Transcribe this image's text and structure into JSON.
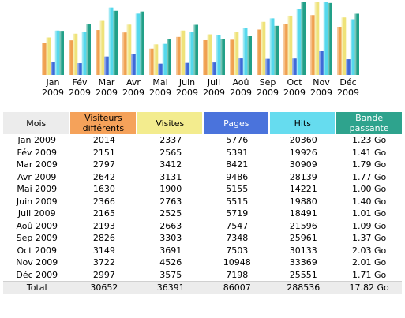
{
  "chart_data": {
    "type": "bar",
    "categories": [
      "Jan 2009",
      "Fév 2009",
      "Mar 2009",
      "Avr 2009",
      "Mai 2009",
      "Juin 2009",
      "Juil 2009",
      "Aoû 2009",
      "Sep 2009",
      "Oct 2009",
      "Nov 2009",
      "Déc 2009"
    ],
    "category_lines": [
      [
        "Jan",
        "2009"
      ],
      [
        "Fév",
        "2009"
      ],
      [
        "Mar",
        "2009"
      ],
      [
        "Avr",
        "2009"
      ],
      [
        "Mai",
        "2009"
      ],
      [
        "Juin",
        "2009"
      ],
      [
        "Juil",
        "2009"
      ],
      [
        "Aoû",
        "2009"
      ],
      [
        "Sep",
        "2009"
      ],
      [
        "Oct",
        "2009"
      ],
      [
        "Nov",
        "2009"
      ],
      [
        "Déc",
        "2009"
      ]
    ],
    "series": [
      {
        "name": "Visiteurs différents",
        "color": "#f0a050",
        "values": [
          2014,
          2151,
          2797,
          2642,
          1630,
          2366,
          2165,
          2193,
          2826,
          3149,
          3722,
          2997
        ]
      },
      {
        "name": "Visites",
        "color": "#efe37a",
        "values": [
          2337,
          2565,
          3412,
          3131,
          1900,
          2763,
          2525,
          2663,
          3303,
          3691,
          4526,
          3575
        ]
      },
      {
        "name": "Pages",
        "color": "#3f69d8",
        "values": [
          5776,
          5391,
          8421,
          9486,
          5155,
          5515,
          5719,
          7547,
          7348,
          7503,
          10948,
          7198
        ]
      },
      {
        "name": "Hits",
        "color": "#55d8ec",
        "values": [
          20360,
          19926,
          30909,
          28139,
          14221,
          19880,
          18491,
          21596,
          25961,
          30133,
          33369,
          25551
        ]
      },
      {
        "name": "Bande passante",
        "color": "#22a088",
        "values": [
          1.23,
          1.41,
          1.79,
          1.77,
          1.0,
          1.4,
          1.01,
          1.09,
          1.37,
          2.03,
          2.01,
          1.71
        ]
      }
    ],
    "scale_groups": [
      [
        0,
        1
      ],
      [
        2,
        3
      ],
      [
        4
      ]
    ]
  },
  "table": {
    "headers": [
      "Mois",
      "Visiteurs différents",
      "Visites",
      "Pages",
      "Hits",
      "Bande passante"
    ],
    "rows": [
      [
        "Jan 2009",
        "2014",
        "2337",
        "5776",
        "20360",
        "1.23 Go"
      ],
      [
        "Fév 2009",
        "2151",
        "2565",
        "5391",
        "19926",
        "1.41 Go"
      ],
      [
        "Mar 2009",
        "2797",
        "3412",
        "8421",
        "30909",
        "1.79 Go"
      ],
      [
        "Avr 2009",
        "2642",
        "3131",
        "9486",
        "28139",
        "1.77 Go"
      ],
      [
        "Mai 2009",
        "1630",
        "1900",
        "5155",
        "14221",
        "1.00 Go"
      ],
      [
        "Juin 2009",
        "2366",
        "2763",
        "5515",
        "19880",
        "1.40 Go"
      ],
      [
        "Juil 2009",
        "2165",
        "2525",
        "5719",
        "18491",
        "1.01 Go"
      ],
      [
        "Aoû 2009",
        "2193",
        "2663",
        "7547",
        "21596",
        "1.09 Go"
      ],
      [
        "Sep 2009",
        "2826",
        "3303",
        "7348",
        "25961",
        "1.37 Go"
      ],
      [
        "Oct 2009",
        "3149",
        "3691",
        "7503",
        "30133",
        "2.03 Go"
      ],
      [
        "Nov 2009",
        "3722",
        "4526",
        "10948",
        "33369",
        "2.01 Go"
      ],
      [
        "Déc 2009",
        "2997",
        "3575",
        "7198",
        "25551",
        "1.71 Go"
      ]
    ],
    "total": [
      "Total",
      "30652",
      "36391",
      "86007",
      "288536",
      "17.82 Go"
    ]
  }
}
